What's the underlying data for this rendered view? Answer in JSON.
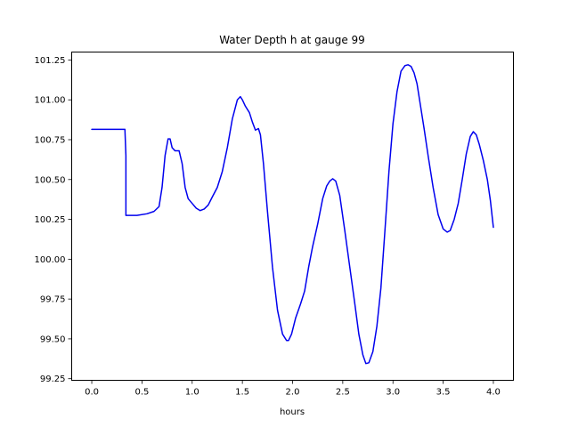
{
  "chart_data": {
    "type": "line",
    "title": "Water Depth h at gauge 99",
    "xlabel": "hours",
    "ylabel": "",
    "xlim": [
      -0.2,
      4.2
    ],
    "ylim": [
      99.24,
      101.3
    ],
    "xticks": [
      0.0,
      0.5,
      1.0,
      1.5,
      2.0,
      2.5,
      3.0,
      3.5,
      4.0
    ],
    "xtick_labels": [
      "0.0",
      "0.5",
      "1.0",
      "1.5",
      "2.0",
      "2.5",
      "3.0",
      "3.5",
      "4.0"
    ],
    "yticks": [
      99.25,
      99.5,
      99.75,
      100.0,
      100.25,
      100.5,
      100.75,
      101.0,
      101.25
    ],
    "ytick_labels": [
      "99.25",
      "99.50",
      "99.75",
      "100.00",
      "100.25",
      "100.50",
      "100.75",
      "101.00",
      "101.25"
    ],
    "grid": false,
    "line_color": "#0000ee",
    "series": [
      {
        "name": "",
        "x": [
          0.0,
          0.1,
          0.2,
          0.33,
          0.34,
          0.34,
          0.45,
          0.55,
          0.62,
          0.67,
          0.7,
          0.73,
          0.76,
          0.78,
          0.8,
          0.83,
          0.87,
          0.9,
          0.93,
          0.96,
          1.0,
          1.04,
          1.08,
          1.12,
          1.16,
          1.2,
          1.25,
          1.3,
          1.35,
          1.4,
          1.45,
          1.48,
          1.5,
          1.53,
          1.57,
          1.6,
          1.63,
          1.66,
          1.68,
          1.71,
          1.75,
          1.8,
          1.85,
          1.9,
          1.94,
          1.96,
          1.99,
          2.03,
          2.08,
          2.12,
          2.16,
          2.2,
          2.25,
          2.3,
          2.34,
          2.37,
          2.4,
          2.43,
          2.47,
          2.52,
          2.57,
          2.62,
          2.66,
          2.7,
          2.73,
          2.76,
          2.8,
          2.84,
          2.88,
          2.92,
          2.96,
          3.0,
          3.04,
          3.08,
          3.12,
          3.15,
          3.18,
          3.21,
          3.24,
          3.27,
          3.31,
          3.35,
          3.4,
          3.45,
          3.5,
          3.54,
          3.57,
          3.61,
          3.65,
          3.69,
          3.73,
          3.77,
          3.8,
          3.83,
          3.86,
          3.9,
          3.94,
          3.97,
          4.0
        ],
        "y": [
          100.815,
          100.815,
          100.815,
          100.815,
          100.65,
          100.275,
          100.275,
          100.285,
          100.3,
          100.33,
          100.45,
          100.65,
          100.755,
          100.755,
          100.7,
          100.68,
          100.68,
          100.6,
          100.45,
          100.38,
          100.35,
          100.32,
          100.305,
          100.315,
          100.34,
          100.39,
          100.45,
          100.55,
          100.7,
          100.88,
          101.0,
          101.02,
          101.0,
          100.96,
          100.92,
          100.86,
          100.81,
          100.82,
          100.78,
          100.6,
          100.3,
          99.95,
          99.68,
          99.53,
          99.49,
          99.49,
          99.53,
          99.63,
          99.72,
          99.8,
          99.95,
          100.08,
          100.22,
          100.38,
          100.46,
          100.49,
          100.505,
          100.49,
          100.4,
          100.18,
          99.95,
          99.72,
          99.53,
          99.4,
          99.345,
          99.35,
          99.42,
          99.58,
          99.82,
          100.18,
          100.55,
          100.85,
          101.05,
          101.18,
          101.215,
          101.22,
          101.21,
          101.17,
          101.1,
          100.98,
          100.82,
          100.65,
          100.45,
          100.28,
          100.19,
          100.17,
          100.18,
          100.25,
          100.35,
          100.5,
          100.66,
          100.77,
          100.8,
          100.78,
          100.72,
          100.62,
          100.5,
          100.37,
          100.2
        ]
      }
    ]
  }
}
